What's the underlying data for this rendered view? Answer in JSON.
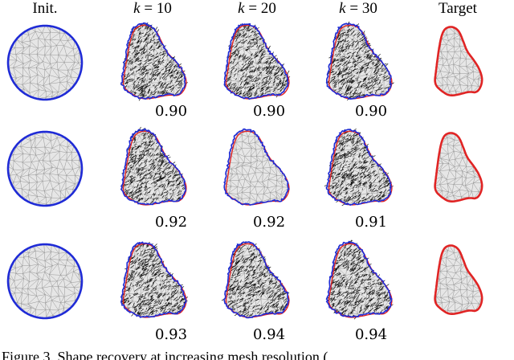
{
  "header": {
    "init": "Init.",
    "k_symbol": "k",
    "k_values": [
      "10",
      "20",
      "30"
    ],
    "target": "Target"
  },
  "scores": [
    [
      "0.90",
      "0.90",
      "0.90"
    ],
    [
      "0.92",
      "0.92",
      "0.91"
    ],
    [
      "0.93",
      "0.94",
      "0.94"
    ]
  ],
  "caption": "Figure 3. Shape recovery at increasing mesh resolution (",
  "colors": {
    "init_outline": "#1f2bd6",
    "pred_outline": "#1f2bd6",
    "target_outline": "#e02424",
    "mesh_fill": "#e6e6e6",
    "mesh_line": "#8c8c8c",
    "vector": "#111111"
  }
}
